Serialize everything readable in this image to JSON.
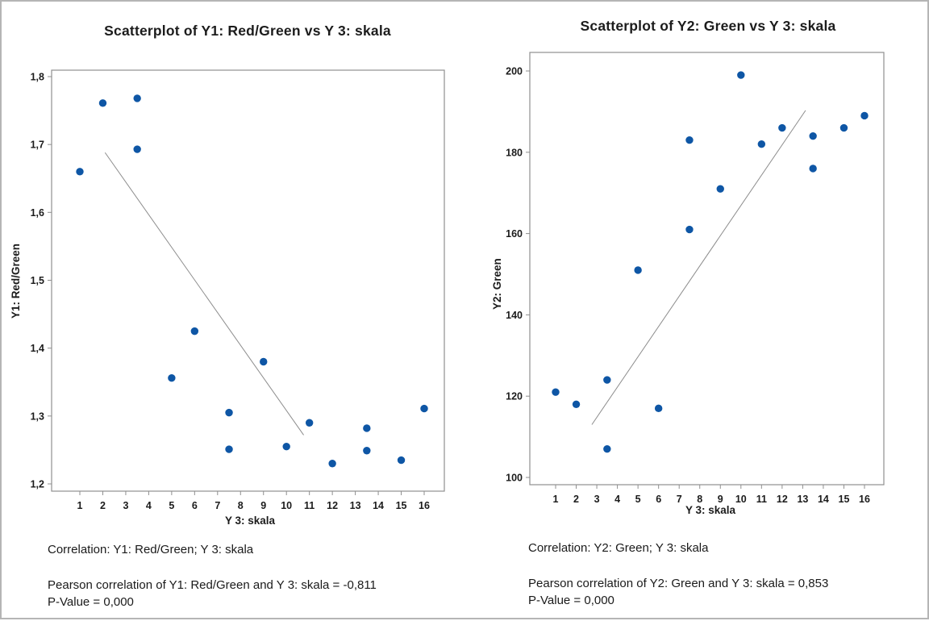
{
  "page": {
    "background": "#ffffff",
    "border_color": "#b5b5b5",
    "marker_color": "#0e56a5",
    "axis_color": "#8f8f8f",
    "trend_line_color": "#8c8c8c"
  },
  "chart_data": [
    {
      "type": "scatter",
      "title": "Scatterplot of Y1: Red/Green vs Y 3: skala",
      "xlabel": "Y 3: skala",
      "ylabel": "Y1: Red/Green",
      "grid": false,
      "legend": "none",
      "xlim": [
        -0.2,
        16.9
      ],
      "ylim": [
        1.19,
        1.81
      ],
      "xticks": [
        1,
        2,
        3,
        4,
        5,
        6,
        7,
        8,
        9,
        10,
        11,
        12,
        13,
        14,
        15,
        16
      ],
      "yticks": [
        1.2,
        1.3,
        1.4,
        1.5,
        1.6,
        1.7,
        1.8
      ],
      "ytick_labels": [
        "1,2",
        "1,3",
        "1,4",
        "1,5",
        "1,6",
        "1,7",
        "1,8"
      ],
      "marker_color": "#0e56a5",
      "points": [
        [
          1,
          1.66
        ],
        [
          2,
          1.761
        ],
        [
          3.5,
          1.768
        ],
        [
          3.5,
          1.693
        ],
        [
          5,
          1.356
        ],
        [
          6,
          1.425
        ],
        [
          7.5,
          1.305
        ],
        [
          7.5,
          1.251
        ],
        [
          9,
          1.38
        ],
        [
          10,
          1.255
        ],
        [
          11,
          1.29
        ],
        [
          12,
          1.23
        ],
        [
          13.5,
          1.282
        ],
        [
          13.5,
          1.249
        ],
        [
          15,
          1.235
        ],
        [
          16,
          1.311
        ]
      ],
      "trend_line": {
        "x1": 2.1,
        "y1": 1.688,
        "x2": 10.75,
        "y2": 1.272,
        "color": "#8c8c8c"
      },
      "footer": {
        "heading": "Correlation: Y1: Red/Green; Y 3: skala",
        "line1": "Pearson correlation of Y1: Red/Green and Y 3: skala = -0,811",
        "line2": "P-Value = 0,000"
      }
    },
    {
      "type": "scatter",
      "title": "Scatterplot of Y2: Green vs Y 3: skala",
      "xlabel": "Y 3: skala",
      "ylabel": "Y2: Green",
      "grid": false,
      "legend": "none",
      "xlim": [
        -0.25,
        16.95
      ],
      "ylim": [
        98,
        204.5
      ],
      "xticks": [
        1,
        2,
        3,
        4,
        5,
        6,
        7,
        8,
        9,
        10,
        11,
        12,
        13,
        14,
        15,
        16
      ],
      "yticks": [
        100,
        120,
        140,
        160,
        180,
        200
      ],
      "ytick_labels": [
        "100",
        "120",
        "140",
        "160",
        "180",
        "200"
      ],
      "marker_color": "#0e56a5",
      "points": [
        [
          1,
          121
        ],
        [
          2,
          118
        ],
        [
          3.5,
          124
        ],
        [
          3.5,
          107
        ],
        [
          5,
          151
        ],
        [
          6,
          117
        ],
        [
          7.5,
          183
        ],
        [
          7.5,
          161
        ],
        [
          9,
          171
        ],
        [
          10,
          199
        ],
        [
          11,
          182
        ],
        [
          12,
          186
        ],
        [
          13.5,
          184
        ],
        [
          13.5,
          176
        ],
        [
          15,
          186
        ],
        [
          16,
          189
        ]
      ],
      "trend_line": {
        "x1": 2.76,
        "y1": 113,
        "x2": 13.14,
        "y2": 190.3,
        "color": "#8c8c8c"
      },
      "footer": {
        "heading": "Correlation: Y2: Green; Y 3: skala",
        "line1": "Pearson correlation of Y2: Green and Y 3: skala = 0,853",
        "line2": "P-Value = 0,000"
      }
    }
  ]
}
